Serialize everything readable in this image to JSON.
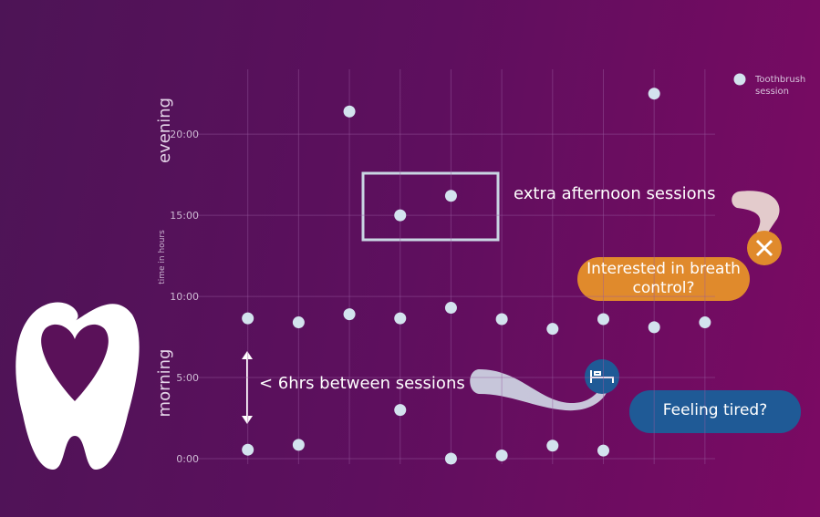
{
  "chart_data": {
    "type": "scatter",
    "y_label_upper": "evening",
    "y_label_lower": "morning",
    "y_label": "time in hours",
    "ylim": [
      0,
      24
    ],
    "yticks": [
      {
        "value": 0,
        "label": "0:00"
      },
      {
        "value": 5,
        "label": "5:00"
      },
      {
        "value": 10,
        "label": "10:00"
      },
      {
        "value": 15,
        "label": "15:00"
      },
      {
        "value": 20,
        "label": "20:00"
      }
    ],
    "xlim": [
      0,
      10.2
    ],
    "xticks": [
      1,
      2,
      3,
      4,
      5,
      6,
      7,
      8,
      9,
      10
    ],
    "grid": true,
    "series": [
      {
        "name": "Toothbrush session",
        "color": "#d3e3ee",
        "x": [
          3,
          9,
          4,
          5,
          1,
          2,
          3,
          4,
          5,
          6,
          7,
          8,
          9,
          10,
          1,
          2,
          4,
          5,
          6,
          7,
          8
        ],
        "values": [
          21.4,
          22.5,
          15.0,
          16.2,
          8.65,
          8.4,
          8.9,
          8.65,
          9.3,
          8.6,
          8.0,
          8.6,
          8.1,
          8.4,
          0.55,
          0.85,
          3.0,
          0.0,
          0.2,
          0.8,
          0.5
        ]
      }
    ],
    "annotations": [
      "extra afternoon sessions",
      "Interested in breath control?",
      "< 6hrs between sessions",
      "Feeling tired?"
    ]
  }
}
